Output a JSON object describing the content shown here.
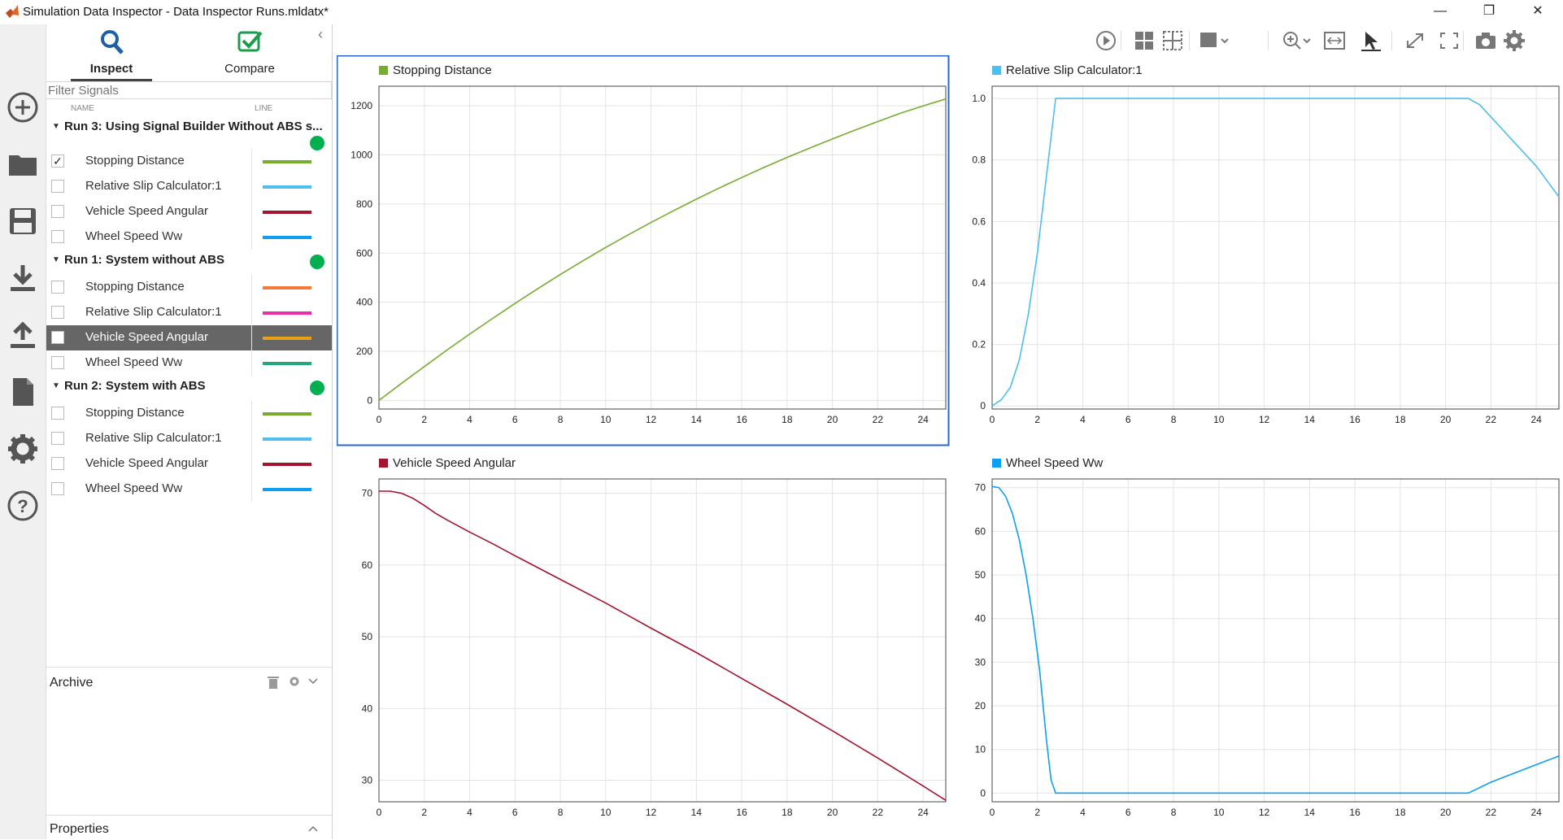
{
  "window": {
    "title": "Simulation Data Inspector - Data Inspector Runs.mldatx*",
    "minimize_label": "—",
    "restore_label": "❐",
    "close_label": "✕"
  },
  "tabs": {
    "inspect_label": "Inspect",
    "compare_label": "Compare",
    "collapse_label": "‹"
  },
  "filter": {
    "placeholder": "Filter Signals"
  },
  "columns": {
    "name": "NAME",
    "line": "LINE"
  },
  "runs": [
    {
      "name": "Run 3: Using Signal Builder Without ABS s...",
      "signals": [
        {
          "label": "Stopping Distance",
          "checked": true,
          "color": "#77ac30"
        },
        {
          "label": "Relative Slip Calculator:1",
          "checked": false,
          "color": "#4dbeee"
        },
        {
          "label": "Vehicle Speed Angular",
          "checked": false,
          "color": "#a2142f"
        },
        {
          "label": "Wheel Speed Ww",
          "checked": false,
          "color": "#0d9ff0"
        }
      ]
    },
    {
      "name": "Run 1: System without ABS",
      "signals": [
        {
          "label": "Stopping Distance",
          "checked": false,
          "color": "#f47a3c"
        },
        {
          "label": "Relative Slip Calculator:1",
          "checked": false,
          "color": "#ee2ba8"
        },
        {
          "label": "Vehicle Speed Angular",
          "checked": false,
          "color": "#e6a217",
          "selected": true
        },
        {
          "label": "Wheel Speed Ww",
          "checked": false,
          "color": "#20a97a"
        }
      ]
    },
    {
      "name": "Run 2: System with ABS",
      "signals": [
        {
          "label": "Stopping Distance",
          "checked": false,
          "color": "#77ac30"
        },
        {
          "label": "Relative Slip Calculator:1",
          "checked": false,
          "color": "#4dbeee"
        },
        {
          "label": "Vehicle Speed Angular",
          "checked": false,
          "color": "#a2142f"
        },
        {
          "label": "Wheel Speed Ww",
          "checked": false,
          "color": "#0d9ff0"
        }
      ]
    }
  ],
  "archive": {
    "label": "Archive"
  },
  "properties": {
    "label": "Properties"
  },
  "chart_data": [
    {
      "type": "line",
      "title": "Stopping Distance",
      "color": "#77ac30",
      "selected": true,
      "xticks": [
        0,
        2,
        4,
        6,
        8,
        10,
        12,
        14,
        16,
        18,
        20,
        22,
        24
      ],
      "xlim": [
        0,
        25
      ],
      "yticks": [
        0,
        200,
        400,
        600,
        800,
        1000,
        1200
      ],
      "ylim": [
        -35,
        1280
      ],
      "series": [
        {
          "x": [
            0,
            1,
            2,
            3,
            4,
            5,
            6,
            7,
            8,
            9,
            10,
            11,
            12,
            13,
            14,
            15,
            16,
            17,
            18,
            19,
            20,
            21,
            22,
            23,
            24,
            25
          ],
          "y": [
            0,
            70,
            138,
            205,
            270,
            333,
            395,
            455,
            513,
            569,
            623,
            675,
            725,
            773,
            820,
            865,
            908,
            950,
            990,
            1028,
            1065,
            1101,
            1136,
            1170,
            1200,
            1228
          ]
        }
      ]
    },
    {
      "type": "line",
      "title": "Relative Slip Calculator:1",
      "color": "#4dbeee",
      "selected": false,
      "xticks": [
        0,
        2,
        4,
        6,
        8,
        10,
        12,
        14,
        16,
        18,
        20,
        22,
        24
      ],
      "xlim": [
        0,
        25
      ],
      "yticks": [
        0,
        0.2,
        0.4,
        0.6,
        0.8,
        1.0
      ],
      "yticklabels": [
        "0",
        "0.2",
        "0.4",
        "0.6",
        "0.8",
        "1.0"
      ],
      "ylim": [
        -0.01,
        1.04
      ],
      "series": [
        {
          "x": [
            0,
            0.4,
            0.8,
            1.2,
            1.6,
            2.0,
            2.4,
            2.8,
            3,
            21,
            21.5,
            22,
            23,
            24,
            25
          ],
          "y": [
            0,
            0.02,
            0.06,
            0.15,
            0.3,
            0.5,
            0.75,
            1.0,
            1.0,
            1.0,
            0.98,
            0.94,
            0.86,
            0.78,
            0.68
          ]
        }
      ]
    },
    {
      "type": "line",
      "title": "Vehicle Speed Angular",
      "color": "#a2142f",
      "selected": false,
      "xticks": [
        0,
        2,
        4,
        6,
        8,
        10,
        12,
        14,
        16,
        18,
        20,
        22,
        24
      ],
      "xlim": [
        0,
        25
      ],
      "yticks": [
        30,
        40,
        50,
        60,
        70
      ],
      "ylim": [
        27,
        72
      ],
      "series": [
        {
          "x": [
            0,
            0.5,
            1,
            1.5,
            2,
            2.5,
            3,
            4,
            5,
            6,
            8,
            10,
            12,
            14,
            16,
            18,
            20,
            22,
            24,
            25
          ],
          "y": [
            70.3,
            70.3,
            70.0,
            69.3,
            68.3,
            67.2,
            66.3,
            64.6,
            63.0,
            61.3,
            58.0,
            54.7,
            51.2,
            47.8,
            44.2,
            40.6,
            36.9,
            33.1,
            29.2,
            27.2
          ]
        }
      ]
    },
    {
      "type": "line",
      "title": "Wheel Speed Ww",
      "color": "#0d9ff0",
      "selected": false,
      "xticks": [
        0,
        2,
        4,
        6,
        8,
        10,
        12,
        14,
        16,
        18,
        20,
        22,
        24
      ],
      "xlim": [
        0,
        25
      ],
      "yticks": [
        0,
        10,
        20,
        30,
        40,
        50,
        60,
        70
      ],
      "ylim": [
        -2,
        72
      ],
      "series": [
        {
          "x": [
            0,
            0.3,
            0.6,
            0.9,
            1.2,
            1.5,
            1.8,
            2.1,
            2.4,
            2.6,
            2.8,
            21,
            22,
            23,
            24,
            25
          ],
          "y": [
            70.3,
            70,
            68,
            64,
            58,
            50,
            40,
            28,
            12,
            3,
            0,
            0,
            2.5,
            4.5,
            6.5,
            8.5
          ]
        }
      ]
    }
  ]
}
